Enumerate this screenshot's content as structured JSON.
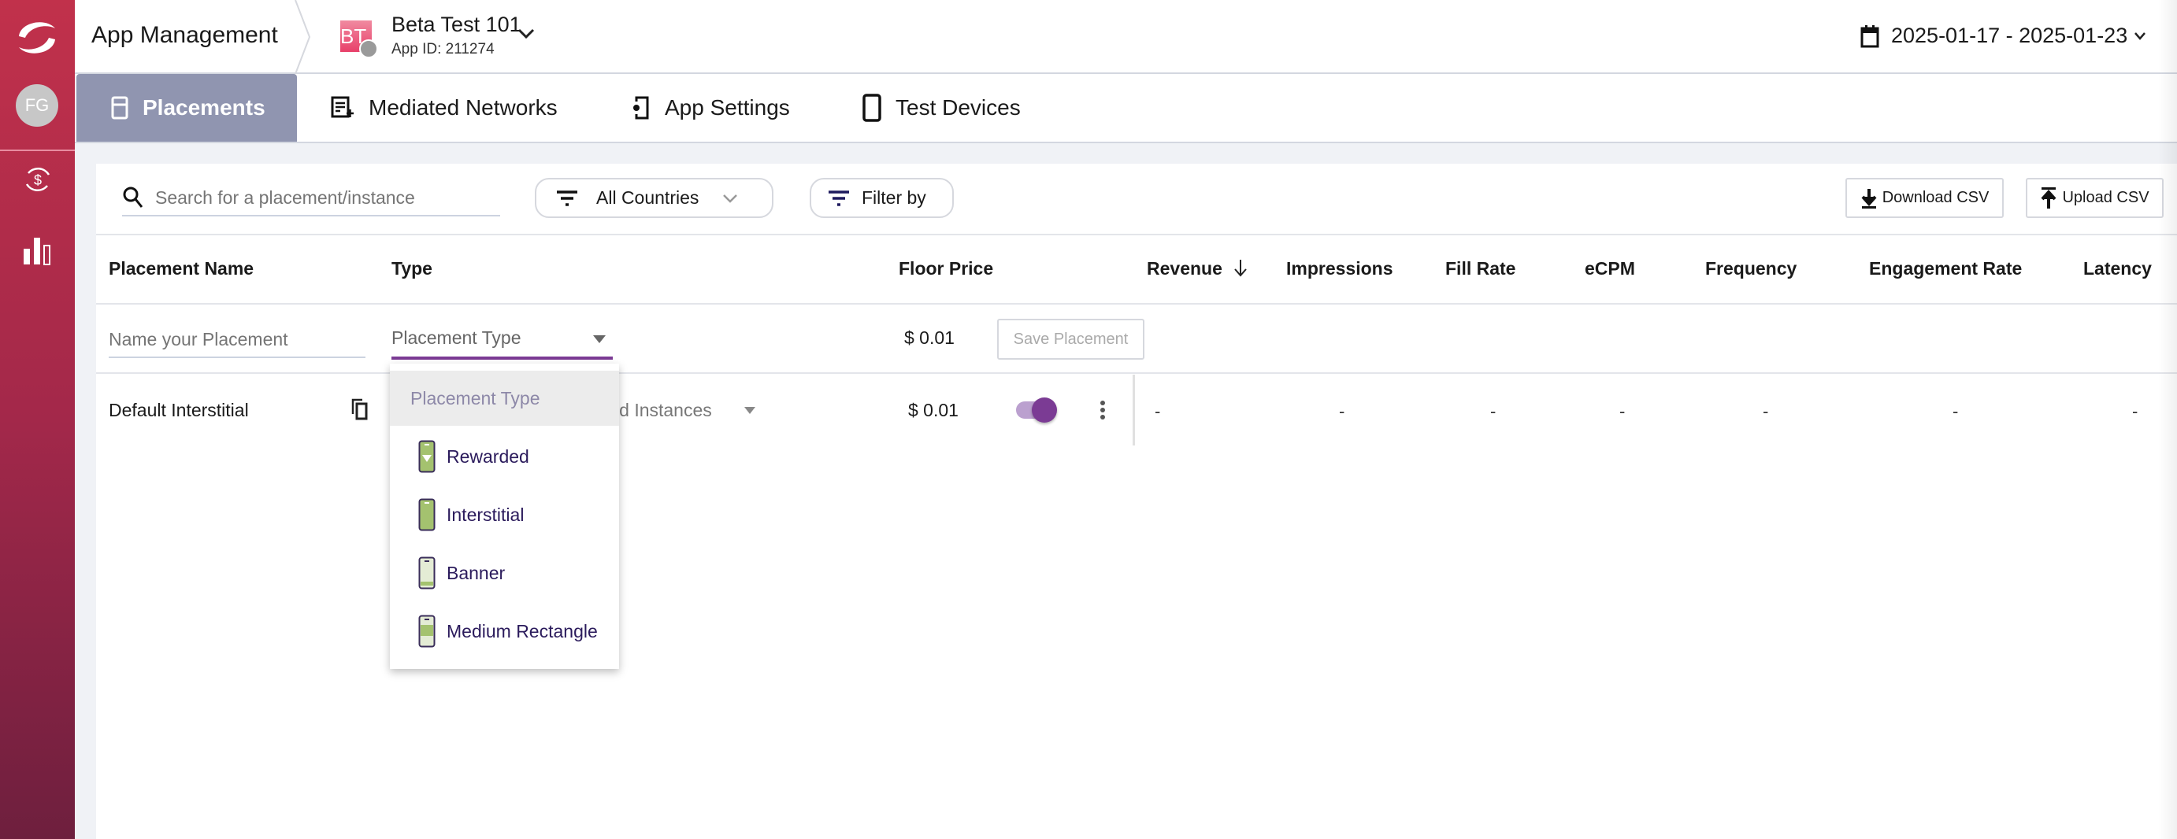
{
  "header": {
    "title": "App Management",
    "app_initials": "BT",
    "app_name": "Beta Test 101",
    "app_id": "App ID: 211274",
    "date_range": "2025-01-17 - 2025-01-23"
  },
  "sidebar": {
    "avatar": "FG",
    "items": [
      {
        "icon": "revenue-cycle-icon"
      },
      {
        "icon": "bar-chart-icon"
      }
    ]
  },
  "tabs": [
    {
      "label": "Placements",
      "active": true
    },
    {
      "label": "Mediated Networks"
    },
    {
      "label": "App Settings"
    },
    {
      "label": "Test Devices"
    }
  ],
  "toolbar": {
    "search_placeholder": "Search for a placement/instance",
    "countries": "All Countries",
    "filter": "Filter by",
    "download": "Download CSV",
    "upload": "Upload CSV"
  },
  "table": {
    "columns": [
      "Placement Name",
      "Type",
      "Floor Price",
      "Revenue",
      "Impressions",
      "Fill Rate",
      "eCPM",
      "Frequency",
      "Engagement Rate",
      "Latency"
    ],
    "sort": {
      "column": "Revenue",
      "direction": "desc"
    },
    "new_row": {
      "name_placeholder": "Name your Placement",
      "type_placeholder": "Placement Type",
      "floor_price": "$ 0.01",
      "save": "Save Placement"
    },
    "rows": [
      {
        "name": "Default Interstitial",
        "instances": "Add Instances",
        "floor_price": "$ 0.01",
        "enabled": true,
        "metrics": [
          "-",
          "-",
          "-",
          "-",
          "-",
          "-",
          "-"
        ]
      }
    ]
  },
  "dropdown": {
    "header": "Placement Type",
    "options": [
      "Rewarded",
      "Interstitial",
      "Banner",
      "Medium Rectangle"
    ]
  },
  "colors": {
    "accent": "#7b3b94",
    "active_tab": "#9095b0",
    "sidebar": "#c1314b",
    "icon_green": "#a4c26f"
  }
}
